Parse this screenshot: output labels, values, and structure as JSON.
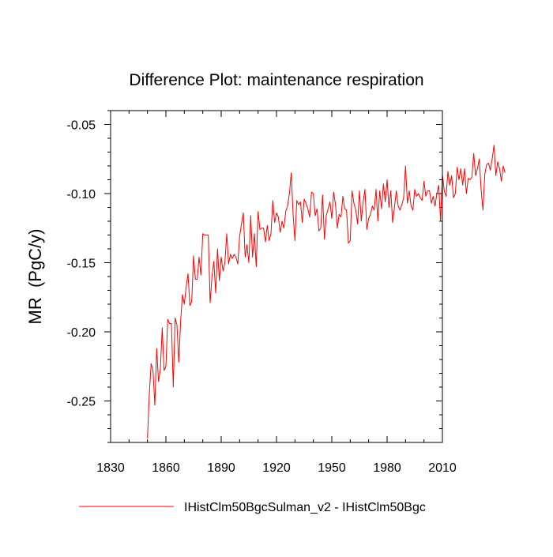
{
  "chart_data": {
    "type": "line",
    "title": "Difference Plot: maintenance respiration",
    "xlabel": "",
    "ylabel": "MR  (PgC/y)",
    "xlim": [
      1830,
      2010
    ],
    "ylim": [
      -0.28,
      -0.04
    ],
    "x_ticks": [
      1830,
      1860,
      1890,
      1920,
      1950,
      1980,
      2010
    ],
    "y_ticks": [
      -0.25,
      -0.2,
      -0.15,
      -0.1,
      -0.05
    ],
    "y_tick_labels": [
      "-0.25",
      "-0.20",
      "-0.15",
      "-0.10",
      "-0.05"
    ],
    "grid": false,
    "legend_position": "bottom",
    "series": [
      {
        "name": "IHistClm50BgcSulman_v2 - IHistClm50Bgc",
        "color": "#ff0000",
        "x_start": 1850,
        "x_step": 1,
        "values": [
          -0.277,
          -0.245,
          -0.223,
          -0.228,
          -0.253,
          -0.212,
          -0.236,
          -0.227,
          -0.197,
          -0.228,
          -0.225,
          -0.191,
          -0.194,
          -0.194,
          -0.24,
          -0.19,
          -0.195,
          -0.222,
          -0.192,
          -0.173,
          -0.18,
          -0.167,
          -0.158,
          -0.181,
          -0.178,
          -0.145,
          -0.162,
          -0.162,
          -0.146,
          -0.159,
          -0.129,
          -0.13,
          -0.13,
          -0.13,
          -0.179,
          -0.16,
          -0.149,
          -0.172,
          -0.14,
          -0.163,
          -0.146,
          -0.156,
          -0.15,
          -0.129,
          -0.151,
          -0.144,
          -0.147,
          -0.144,
          -0.146,
          -0.151,
          -0.131,
          -0.122,
          -0.114,
          -0.146,
          -0.137,
          -0.15,
          -0.116,
          -0.146,
          -0.129,
          -0.153,
          -0.113,
          -0.126,
          -0.125,
          -0.125,
          -0.135,
          -0.123,
          -0.134,
          -0.129,
          -0.105,
          -0.121,
          -0.114,
          -0.117,
          -0.128,
          -0.12,
          -0.125,
          -0.113,
          -0.109,
          -0.1,
          -0.085,
          -0.115,
          -0.134,
          -0.105,
          -0.108,
          -0.106,
          -0.121,
          -0.104,
          -0.107,
          -0.111,
          -0.117,
          -0.099,
          -0.1,
          -0.116,
          -0.111,
          -0.127,
          -0.125,
          -0.101,
          -0.133,
          -0.116,
          -0.111,
          -0.106,
          -0.118,
          -0.099,
          -0.108,
          -0.125,
          -0.115,
          -0.117,
          -0.102,
          -0.111,
          -0.112,
          -0.136,
          -0.134,
          -0.098,
          -0.107,
          -0.112,
          -0.122,
          -0.098,
          -0.12,
          -0.106,
          -0.097,
          -0.126,
          -0.118,
          -0.115,
          -0.109,
          -0.112,
          -0.097,
          -0.12,
          -0.098,
          -0.111,
          -0.093,
          -0.106,
          -0.09,
          -0.11,
          -0.098,
          -0.121,
          -0.11,
          -0.098,
          -0.109,
          -0.112,
          -0.108,
          -0.103,
          -0.08,
          -0.107,
          -0.098,
          -0.109,
          -0.112,
          -0.097,
          -0.102,
          -0.1,
          -0.103,
          -0.105,
          -0.091,
          -0.102,
          -0.098,
          -0.098,
          -0.107,
          -0.102,
          -0.109,
          -0.1,
          -0.094,
          -0.12,
          -0.086,
          -0.098,
          -0.102,
          -0.084,
          -0.094,
          -0.087,
          -0.103,
          -0.1,
          -0.081,
          -0.09,
          -0.082,
          -0.094,
          -0.082,
          -0.1,
          -0.089,
          -0.09,
          -0.088,
          -0.071,
          -0.087,
          -0.082,
          -0.075,
          -0.097,
          -0.112,
          -0.086,
          -0.079,
          -0.078,
          -0.083,
          -0.075,
          -0.065,
          -0.087,
          -0.077,
          -0.082,
          -0.091,
          -0.08,
          -0.085
        ]
      }
    ]
  }
}
